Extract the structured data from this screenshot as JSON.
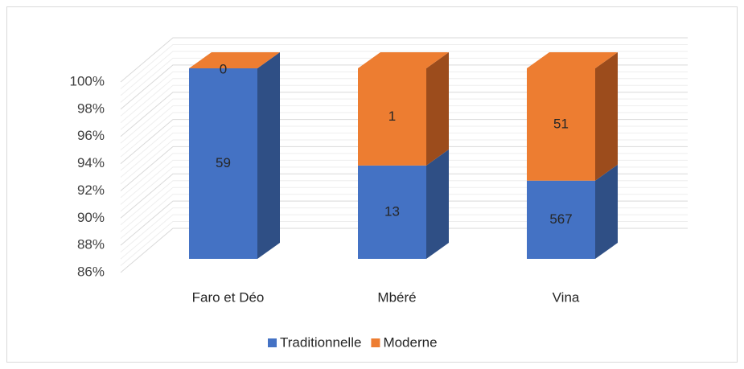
{
  "chart_data": {
    "type": "bar",
    "stacking": "percent",
    "categories": [
      "Faro et Déo",
      "Mbéré",
      "Vina"
    ],
    "series": [
      {
        "name": "Traditionnelle",
        "color": "#4472c4",
        "side_color": "#2f4f85",
        "values": [
          59,
          13,
          567
        ]
      },
      {
        "name": "Moderne",
        "color": "#ed7d31",
        "side_color": "#9c4c1c",
        "values": [
          0,
          1,
          51
        ]
      }
    ],
    "ylim": [
      86,
      100
    ],
    "yticks": [
      {
        "value": 86,
        "label": "86%"
      },
      {
        "value": 88,
        "label": "88%"
      },
      {
        "value": 90,
        "label": "90%"
      },
      {
        "value": 92,
        "label": "92%"
      },
      {
        "value": 94,
        "label": "94%"
      },
      {
        "value": 96,
        "label": "96%"
      },
      {
        "value": 98,
        "label": "98%"
      },
      {
        "value": 100,
        "label": "100%"
      }
    ],
    "grid": true,
    "legend": "bottom"
  }
}
